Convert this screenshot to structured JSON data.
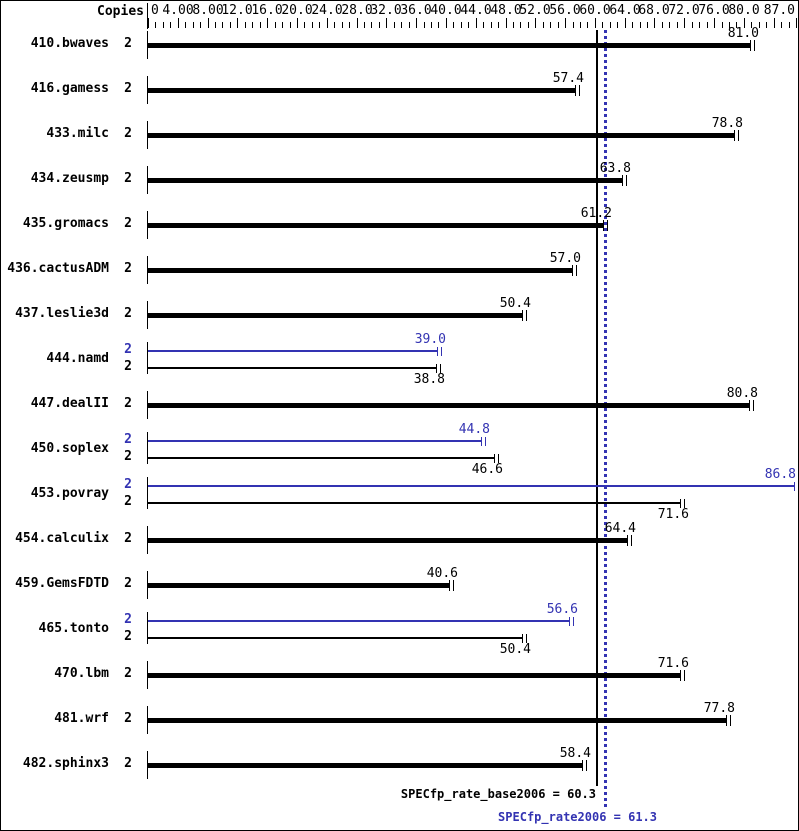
{
  "header": {
    "copies_label": "Copies"
  },
  "colors": {
    "base_bar": "#000000",
    "peak_bar": "#3333b2",
    "base_ref_line": "#000000",
    "peak_ref_line": "#3333b2",
    "background": "#ffffff"
  },
  "chart_data": {
    "type": "bar",
    "orientation": "horizontal",
    "title": "",
    "xlabel": "",
    "xlim": [
      0,
      87
    ],
    "grid": false,
    "axis_ticks": {
      "values": [
        0,
        4,
        8,
        12,
        16,
        20,
        24,
        28,
        32,
        36,
        40,
        44,
        48,
        52,
        56,
        60,
        64,
        68,
        72,
        76,
        80,
        87
      ],
      "labels": [
        "0",
        "4.00",
        "8.00",
        "12.0",
        "16.0",
        "20.0",
        "24.0",
        "28.0",
        "32.0",
        "36.0",
        "40.0",
        "44.0",
        "48.0",
        "52.0",
        "56.0",
        "60.0",
        "64.0",
        "68.0",
        "72.0",
        "76.0",
        "80.0",
        "87.0"
      ],
      "minor_step": 1
    },
    "benchmarks": [
      {
        "name": "410.bwaves",
        "copies": 2,
        "base": 81.0
      },
      {
        "name": "416.gamess",
        "copies": 2,
        "base": 57.4
      },
      {
        "name": "433.milc",
        "copies": 2,
        "base": 78.8
      },
      {
        "name": "434.zeusmp",
        "copies": 2,
        "base": 63.8
      },
      {
        "name": "435.gromacs",
        "copies": 2,
        "base": 61.2
      },
      {
        "name": "436.cactusADM",
        "copies": 2,
        "base": 57.0
      },
      {
        "name": "437.leslie3d",
        "copies": 2,
        "base": 50.4
      },
      {
        "name": "444.namd",
        "copies": 2,
        "peak": 39.0,
        "base": 38.8
      },
      {
        "name": "447.dealII",
        "copies": 2,
        "base": 80.8
      },
      {
        "name": "450.soplex",
        "copies": 2,
        "peak": 44.8,
        "base": 46.6
      },
      {
        "name": "453.povray",
        "copies": 2,
        "peak": 86.8,
        "base": 71.6
      },
      {
        "name": "454.calculix",
        "copies": 2,
        "base": 64.4
      },
      {
        "name": "459.GemsFDTD",
        "copies": 2,
        "base": 40.6
      },
      {
        "name": "465.tonto",
        "copies": 2,
        "peak": 56.6,
        "base": 50.4
      },
      {
        "name": "470.lbm",
        "copies": 2,
        "base": 71.6
      },
      {
        "name": "481.wrf",
        "copies": 2,
        "base": 77.8
      },
      {
        "name": "482.sphinx3",
        "copies": 2,
        "base": 58.4
      }
    ],
    "reference_lines": [
      {
        "label": "SPECfp_rate_base2006 = 60.3",
        "value": 60.3,
        "style": "solid",
        "color": "#000000"
      },
      {
        "label": "SPECfp_rate2006 = 61.3",
        "value": 61.3,
        "style": "dotted",
        "color": "#3333b2"
      }
    ]
  }
}
